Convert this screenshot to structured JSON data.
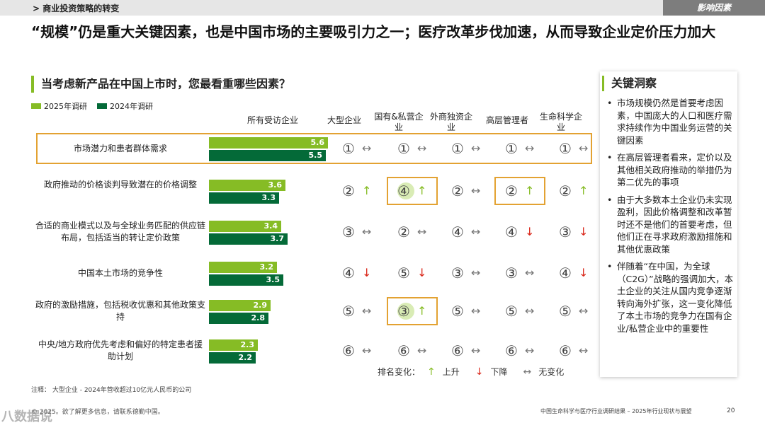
{
  "header": {
    "breadcrumb": "> 商业投资策略的转变",
    "section_tag": "影响因素"
  },
  "headline": "“规模”仍是重大关键因素，也是中国市场的主要吸引力之一；医疗改革步伐加速，从而导致企业定价压力加大",
  "chart_title": "当考虑新产品在中国上市时，您最看重哪些因素？",
  "legend": {
    "series_2025": "2025年调研",
    "series_2024": "2024年调研"
  },
  "colors": {
    "series_2025": "#86bc25",
    "series_2024": "#046a38",
    "highlight": "#e3a232",
    "down": "#da291c"
  },
  "columns": [
    "所有受访企业",
    "大型企业",
    "国有&私营企业",
    "外商独资企业",
    "高层管理者",
    "生命科学企业"
  ],
  "chart_data": {
    "type": "bar",
    "categories": [
      "市场潜力和患者群体需求",
      "政府推动的价格谈判导致潜在的价格调整",
      "合适的商业模式以及与全球业务匹配的供应链布局，包括适当的转让定价政策",
      "中国本土市场的竞争性",
      "政府的激励措施，包括税收优惠和其他政策支持",
      "中央/地方政府优先考虑和偏好的特定患者援助计划"
    ],
    "series": [
      {
        "name": "2025年调研",
        "values": [
          5.6,
          3.6,
          3.4,
          3.2,
          2.9,
          2.3
        ]
      },
      {
        "name": "2024年调研",
        "values": [
          5.5,
          3.3,
          3.7,
          3.5,
          2.8,
          2.2
        ]
      }
    ],
    "xlim": [
      0,
      6
    ]
  },
  "rows": [
    {
      "label": "市场潜力和患者群体需求",
      "v2025": "5.6",
      "v2024": "5.5",
      "ranks": [
        [
          "①",
          "same"
        ],
        [
          "①",
          "same"
        ],
        [
          "①",
          "same"
        ],
        [
          "①",
          "same"
        ],
        [
          "①",
          "same"
        ]
      ]
    },
    {
      "label": "政府推动的价格谈判导致潜在的价格调整",
      "v2025": "3.6",
      "v2024": "3.3",
      "ranks": [
        [
          "②",
          "up"
        ],
        [
          "④",
          "up"
        ],
        [
          "②",
          "same"
        ],
        [
          "②",
          "up"
        ],
        [
          "②",
          "up"
        ]
      ]
    },
    {
      "label": "合适的商业模式以及与全球业务匹配的供应链布局，包括适当的转让定价政策",
      "v2025": "3.4",
      "v2024": "3.7",
      "ranks": [
        [
          "③",
          "same"
        ],
        [
          "②",
          "same"
        ],
        [
          "④",
          "same"
        ],
        [
          "④",
          "down"
        ],
        [
          "③",
          "down"
        ]
      ]
    },
    {
      "label": "中国本土市场的竞争性",
      "v2025": "3.2",
      "v2024": "3.5",
      "ranks": [
        [
          "④",
          "down"
        ],
        [
          "⑤",
          "down"
        ],
        [
          "③",
          "same"
        ],
        [
          "③",
          "same"
        ],
        [
          "④",
          "down"
        ]
      ]
    },
    {
      "label": "政府的激励措施，包括税收优惠和其他政策支持",
      "v2025": "2.9",
      "v2024": "2.8",
      "ranks": [
        [
          "⑤",
          "same"
        ],
        [
          "③",
          "up"
        ],
        [
          "⑤",
          "same"
        ],
        [
          "⑤",
          "same"
        ],
        [
          "⑤",
          "same"
        ]
      ]
    },
    {
      "label": "中央/地方政府优先考虑和偏好的特定患者援助计划",
      "v2025": "2.3",
      "v2024": "2.2",
      "ranks": [
        [
          "⑥",
          "same"
        ],
        [
          "⑥",
          "same"
        ],
        [
          "⑥",
          "same"
        ],
        [
          "⑥",
          "same"
        ],
        [
          "⑥",
          "same"
        ]
      ]
    }
  ],
  "rank_change_legend": {
    "label": "排名变化：",
    "up": "上升",
    "down": "下降",
    "same": "无变化"
  },
  "symbols": {
    "up": "↑",
    "down": "↓",
    "same": "↔"
  },
  "insights": {
    "title": "关键洞察",
    "items": [
      "市场规模仍然是首要考虑因素，中国庞大的人口和医疗需求持续作为中国业务运营的关键因素",
      "在高层管理者看来，定价以及其他相关政府推动的举措仍为第二优先的事项",
      "由于大多数本土企业仍未实现盈利，因此价格调整和改革暂时还不是他们的首要考虑，但他们正在寻求政府激励措施和其他优惠政策",
      "伴随着“在中国，为全球（C2G）”战略的强调加大，本土企业的关注从国内竞争逐渐转向海外扩张，这一变化降低了本土市场的竞争力在国有企业/私营企业中的重要性"
    ]
  },
  "note": "注释：   大型企业 - 2024年营收超过10亿元人民币的公司",
  "copyright": "© 2025。欲了解更多信息，请联系德勤中国。",
  "watermark": "八数据说",
  "footer": "中国生命科学与医疗行业调研结果 – 2025年行业现状与展望",
  "page_number": "20"
}
